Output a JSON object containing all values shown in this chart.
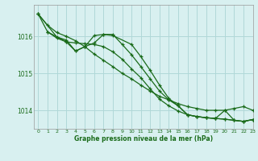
{
  "background_color": "#d8f0f0",
  "grid_color": "#b0d8d8",
  "line_color": "#1a6b1a",
  "xlabel": "Graphe pression niveau de la mer (hPa)",
  "ylim": [
    1013.5,
    1016.85
  ],
  "xlim": [
    -0.5,
    23
  ],
  "yticks": [
    1014,
    1015,
    1016
  ],
  "xticks": [
    0,
    1,
    2,
    3,
    4,
    5,
    6,
    7,
    8,
    9,
    10,
    11,
    12,
    13,
    14,
    15,
    16,
    17,
    18,
    19,
    20,
    21,
    22,
    23
  ],
  "series": [
    {
      "x": [
        0,
        1,
        2,
        3,
        4,
        5,
        6,
        7,
        8,
        9,
        10,
        11,
        12,
        13,
        14,
        15,
        16,
        17,
        18,
        19,
        20,
        21,
        22,
        23
      ],
      "y": [
        1016.6,
        1016.3,
        1016.1,
        1016.0,
        1015.88,
        1015.72,
        1015.52,
        1015.35,
        1015.18,
        1015.0,
        1014.85,
        1014.68,
        1014.52,
        1014.38,
        1014.28,
        1014.18,
        1014.1,
        1014.05,
        1014.0,
        1014.0,
        1014.0,
        1014.05,
        1014.1,
        1014.0
      ]
    },
    {
      "x": [
        0,
        1,
        2,
        3,
        4,
        5,
        6,
        7,
        8,
        9,
        10,
        11,
        12,
        13,
        14,
        15,
        16,
        17,
        18,
        19,
        20,
        21,
        22,
        23
      ],
      "y": [
        1016.6,
        1016.12,
        1015.95,
        1015.85,
        1015.82,
        1015.8,
        1015.78,
        1015.72,
        1015.58,
        1015.38,
        1015.12,
        1014.88,
        1014.58,
        1014.3,
        1014.12,
        1013.98,
        1013.88,
        1013.83,
        1013.8,
        1013.78,
        1013.76,
        1013.73,
        1013.7,
        1013.75
      ]
    },
    {
      "x": [
        0,
        2,
        3,
        4,
        5,
        6,
        7,
        8,
        9,
        10,
        11,
        12,
        13,
        14,
        15,
        16,
        17,
        18,
        19,
        20,
        21,
        22,
        23
      ],
      "y": [
        1016.6,
        1015.98,
        1015.9,
        1015.6,
        1015.72,
        1015.82,
        1016.05,
        1016.05,
        1015.78,
        1015.5,
        1015.18,
        1014.85,
        1014.52,
        1014.28,
        1014.12,
        1013.88,
        1013.83,
        1013.8,
        1013.78,
        1013.76,
        1013.73,
        1013.7,
        1013.75
      ]
    },
    {
      "x": [
        1,
        3,
        4,
        5,
        6,
        7,
        8,
        10,
        11,
        12,
        13,
        14,
        15,
        16,
        17,
        18,
        19,
        20,
        21,
        22,
        23
      ],
      "y": [
        1016.12,
        1015.85,
        1015.6,
        1015.72,
        1016.02,
        1016.05,
        1016.02,
        1015.78,
        1015.45,
        1015.08,
        1014.68,
        1014.32,
        1014.12,
        1013.88,
        1013.83,
        1013.8,
        1013.78,
        1014.0,
        1013.73,
        1013.7,
        1013.75
      ]
    }
  ]
}
